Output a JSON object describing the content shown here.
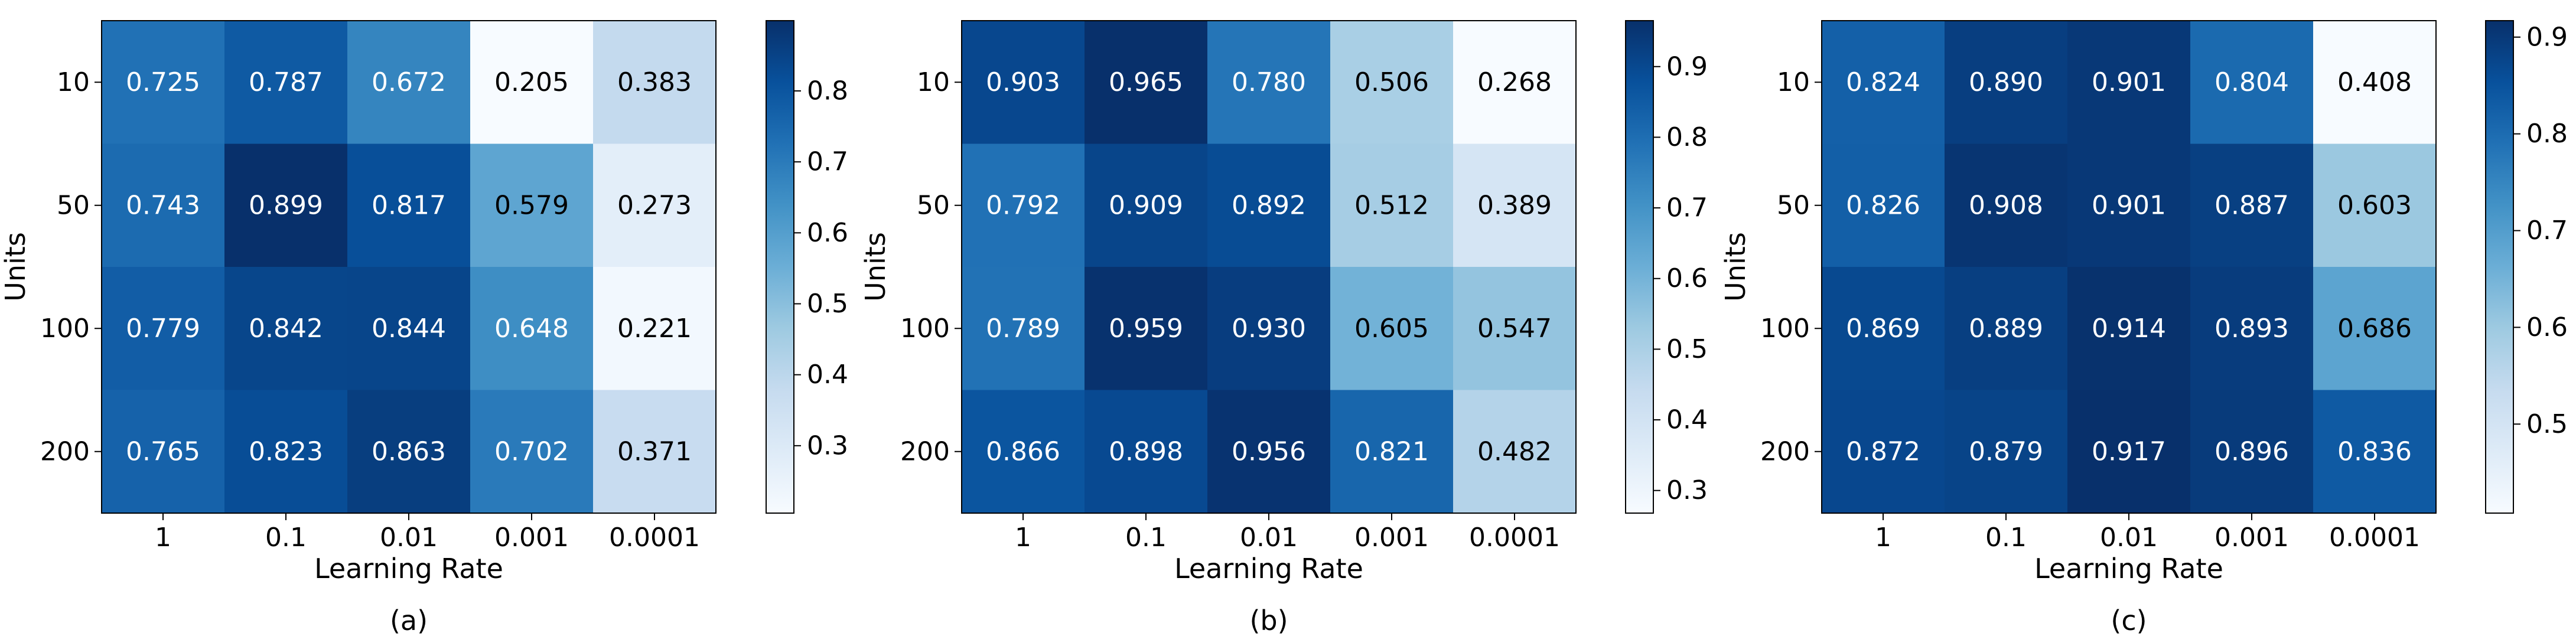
{
  "chart_data": [
    {
      "type": "heatmap",
      "caption": "(a)",
      "xlabel": "Learning Rate",
      "ylabel": "Units",
      "x_categories": [
        "1",
        "0.1",
        "0.01",
        "0.001",
        "0.0001"
      ],
      "y_categories": [
        "10",
        "50",
        "100",
        "200"
      ],
      "values": [
        [
          0.725,
          0.787,
          0.672,
          0.205,
          0.383
        ],
        [
          0.743,
          0.899,
          0.817,
          0.579,
          0.273
        ],
        [
          0.779,
          0.842,
          0.844,
          0.648,
          0.221
        ],
        [
          0.765,
          0.823,
          0.863,
          0.702,
          0.371
        ]
      ],
      "cell_labels": [
        [
          "0.725",
          "0.787",
          "0.672",
          "0.205",
          "0.383"
        ],
        [
          "0.743",
          "0.899",
          "0.817",
          "0.579",
          "0.273"
        ],
        [
          "0.779",
          "0.842",
          "0.844",
          "0.648",
          "0.221"
        ],
        [
          "0.765",
          "0.823",
          "0.863",
          "0.702",
          "0.371"
        ]
      ],
      "colorbar": {
        "ticks": [
          0.3,
          0.4,
          0.5,
          0.6,
          0.7,
          0.8
        ],
        "tick_labels": [
          "0.3",
          "0.4",
          "0.5",
          "0.6",
          "0.7",
          "0.8"
        ]
      },
      "colormap": "Blues"
    },
    {
      "type": "heatmap",
      "caption": "(b)",
      "xlabel": "Learning Rate",
      "ylabel": "Units",
      "x_categories": [
        "1",
        "0.1",
        "0.01",
        "0.001",
        "0.0001"
      ],
      "y_categories": [
        "10",
        "50",
        "100",
        "200"
      ],
      "values": [
        [
          0.903,
          0.965,
          0.78,
          0.506,
          0.268
        ],
        [
          0.792,
          0.909,
          0.892,
          0.512,
          0.389
        ],
        [
          0.789,
          0.959,
          0.93,
          0.605,
          0.547
        ],
        [
          0.866,
          0.898,
          0.956,
          0.821,
          0.482
        ]
      ],
      "cell_labels": [
        [
          "0.903",
          "0.965",
          "0.780",
          "0.506",
          "0.268"
        ],
        [
          "0.792",
          "0.909",
          "0.892",
          "0.512",
          "0.389"
        ],
        [
          "0.789",
          "0.959",
          "0.930",
          "0.605",
          "0.547"
        ],
        [
          "0.866",
          "0.898",
          "0.956",
          "0.821",
          "0.482"
        ]
      ],
      "colorbar": {
        "ticks": [
          0.3,
          0.4,
          0.5,
          0.6,
          0.7,
          0.8,
          0.9
        ],
        "tick_labels": [
          "0.3",
          "0.4",
          "0.5",
          "0.6",
          "0.7",
          "0.8",
          "0.9"
        ]
      },
      "colormap": "Blues"
    },
    {
      "type": "heatmap",
      "caption": "(c)",
      "xlabel": "Learning Rate",
      "ylabel": "Units",
      "x_categories": [
        "1",
        "0.1",
        "0.01",
        "0.001",
        "0.0001"
      ],
      "y_categories": [
        "10",
        "50",
        "100",
        "200"
      ],
      "values": [
        [
          0.824,
          0.89,
          0.901,
          0.804,
          0.408
        ],
        [
          0.826,
          0.908,
          0.901,
          0.887,
          0.603
        ],
        [
          0.869,
          0.889,
          0.914,
          0.893,
          0.686
        ],
        [
          0.872,
          0.879,
          0.917,
          0.896,
          0.836
        ]
      ],
      "cell_labels": [
        [
          "0.824",
          "0.890",
          "0.901",
          "0.804",
          "0.408"
        ],
        [
          "0.826",
          "0.908",
          "0.901",
          "0.887",
          "0.603"
        ],
        [
          "0.869",
          "0.889",
          "0.914",
          "0.893",
          "0.686"
        ],
        [
          "0.872",
          "0.879",
          "0.917",
          "0.896",
          "0.836"
        ]
      ],
      "colorbar": {
        "ticks": [
          0.5,
          0.6,
          0.7,
          0.8,
          0.9
        ],
        "tick_labels": [
          "0.5",
          "0.6",
          "0.7",
          "0.8",
          "0.9"
        ]
      },
      "colormap": "Blues"
    }
  ]
}
